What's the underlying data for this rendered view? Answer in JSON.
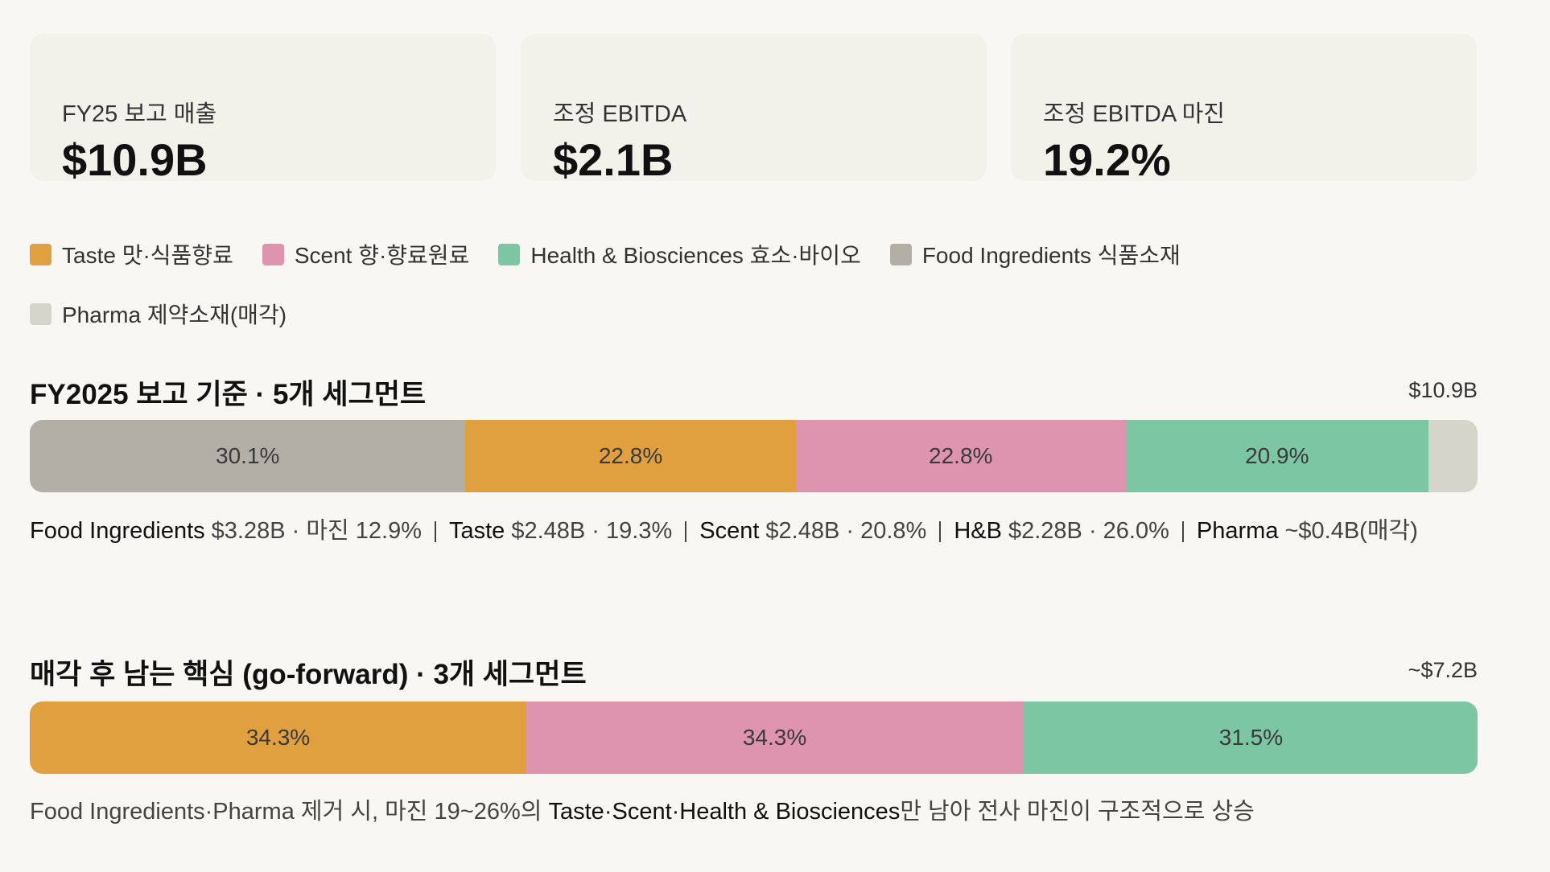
{
  "kpis": [
    {
      "label": "FY25 보고 매출",
      "value": "$10.9B"
    },
    {
      "label": "조정 EBITDA",
      "value": "$2.1B"
    },
    {
      "label": "조정 EBITDA 마진",
      "value": "19.2%"
    }
  ],
  "legend": [
    {
      "name": "Taste 맛·식품향료",
      "color": "#E0A040"
    },
    {
      "name": "Scent 향·향료원료",
      "color": "#DE94AE"
    },
    {
      "name": "Health & Biosciences 효소·바이오",
      "color": "#7DC6A4"
    },
    {
      "name": "Food Ingredients 식품소재",
      "color": "#B3AFA7"
    },
    {
      "name": "Pharma 제약소재(매각)",
      "color": "#D6D5CC"
    }
  ],
  "chart_data": [
    {
      "type": "bar",
      "title": "FY2025 보고 기준 · 5개 세그먼트",
      "total": "$10.9B",
      "xlim": [
        0,
        100
      ],
      "series": [
        {
          "color": "#B3AFA7",
          "values": [
            30.1
          ],
          "value_labels": [
            "30.1%"
          ]
        },
        {
          "color": "#E0A040",
          "values": [
            22.8
          ],
          "value_labels": [
            "22.8%"
          ]
        },
        {
          "color": "#DE94AE",
          "values": [
            22.8
          ],
          "value_labels": [
            "22.8%"
          ]
        },
        {
          "color": "#7DC6A4",
          "values": [
            20.9
          ],
          "value_labels": [
            "20.9%"
          ]
        },
        {
          "color": "#D6D5CC",
          "values": [
            3.4
          ],
          "value_labels": [
            null
          ]
        }
      ],
      "note": [
        {
          "name": "Food Ingredients",
          "detail": "$3.28B · 마진 12.9%"
        },
        {
          "name": "Taste",
          "detail": "$2.48B · 19.3%"
        },
        {
          "name": "Scent",
          "detail": "$2.48B · 20.8%"
        },
        {
          "name": "H&B",
          "detail": "$2.28B · 26.0%"
        },
        {
          "name": "Pharma",
          "detail": "~$0.4B(매각)"
        }
      ]
    },
    {
      "type": "bar",
      "title": "매각 후 남는 핵심 (go-forward) · 3개 세그먼트",
      "total": "~$7.2B",
      "xlim": [
        0,
        100
      ],
      "series": [
        {
          "color": "#E0A040",
          "values": [
            34.3
          ],
          "value_labels": [
            "34.3%"
          ]
        },
        {
          "color": "#DE94AE",
          "values": [
            34.3
          ],
          "value_labels": [
            "34.3%"
          ]
        },
        {
          "color": "#7DC6A4",
          "values": [
            31.5
          ],
          "value_labels": [
            "31.5%"
          ]
        }
      ],
      "note_parts": [
        {
          "text": "Food Ingredients·Pharma 제거 시, 마진 19~26%의 ",
          "bold": false
        },
        {
          "text": "Taste·Scent·Health & Biosciences",
          "bold": true
        },
        {
          "text": "만 남아 전사 마진이 구조적으로 상승",
          "bold": false
        }
      ]
    }
  ]
}
